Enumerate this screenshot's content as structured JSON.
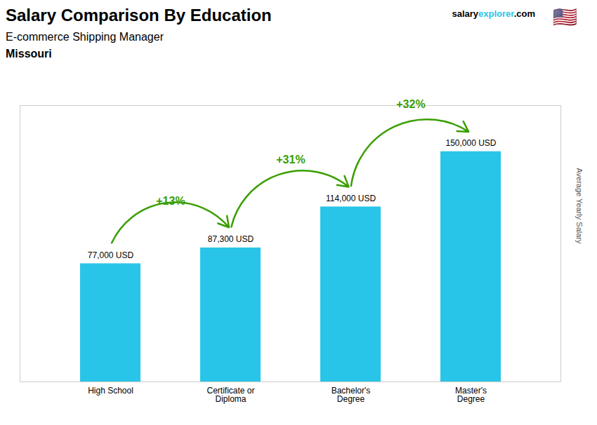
{
  "chart_data": {
    "type": "bar",
    "title": "Salary Comparison By Education",
    "subtitle": "E-commerce Shipping Manager",
    "location": "Missouri",
    "brand": [
      "salary",
      "explorer",
      ".com"
    ],
    "flag": "🇺🇸",
    "ylabel": "Average Yearly Salary",
    "categories": [
      "High School",
      "Certificate or\nDiploma",
      "Bachelor's\nDegree",
      "Master's\nDegree"
    ],
    "values": [
      77000,
      87300,
      114000,
      150000
    ],
    "value_labels": [
      "77,000 USD",
      "87,300 USD",
      "114,000 USD",
      "150,000 USD"
    ],
    "data_labels": true,
    "annotations": [
      "+13%",
      "+31%",
      "+32%"
    ],
    "color": "#29c5e8",
    "ylim": [
      0,
      180000
    ],
    "grid": false,
    "tick_labels": "x"
  }
}
